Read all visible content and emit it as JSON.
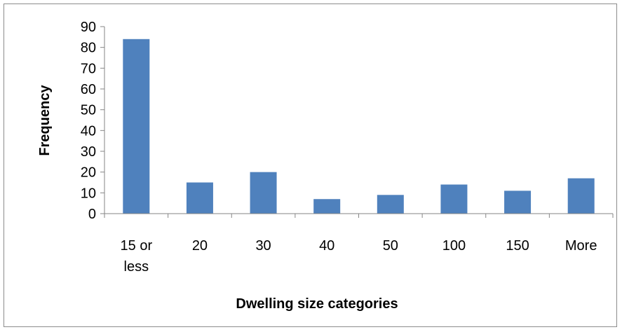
{
  "chart_data": {
    "type": "bar",
    "categories": [
      "15 or less",
      "20",
      "30",
      "40",
      "50",
      "100",
      "150",
      "More"
    ],
    "category_lines": [
      [
        "15 or",
        "less"
      ],
      [
        "20"
      ],
      [
        "30"
      ],
      [
        "40"
      ],
      [
        "50"
      ],
      [
        "100"
      ],
      [
        "150"
      ],
      [
        "More"
      ]
    ],
    "values": [
      84,
      15,
      20,
      7,
      9,
      14,
      11,
      17
    ],
    "xlabel": "Dwelling size categories",
    "ylabel": "Frequency",
    "ylim": [
      0,
      90
    ],
    "yticks": [
      0,
      10,
      20,
      30,
      40,
      50,
      60,
      70,
      80,
      90
    ],
    "grid": false,
    "legend": "none",
    "bar_color": "#4F81BD"
  }
}
